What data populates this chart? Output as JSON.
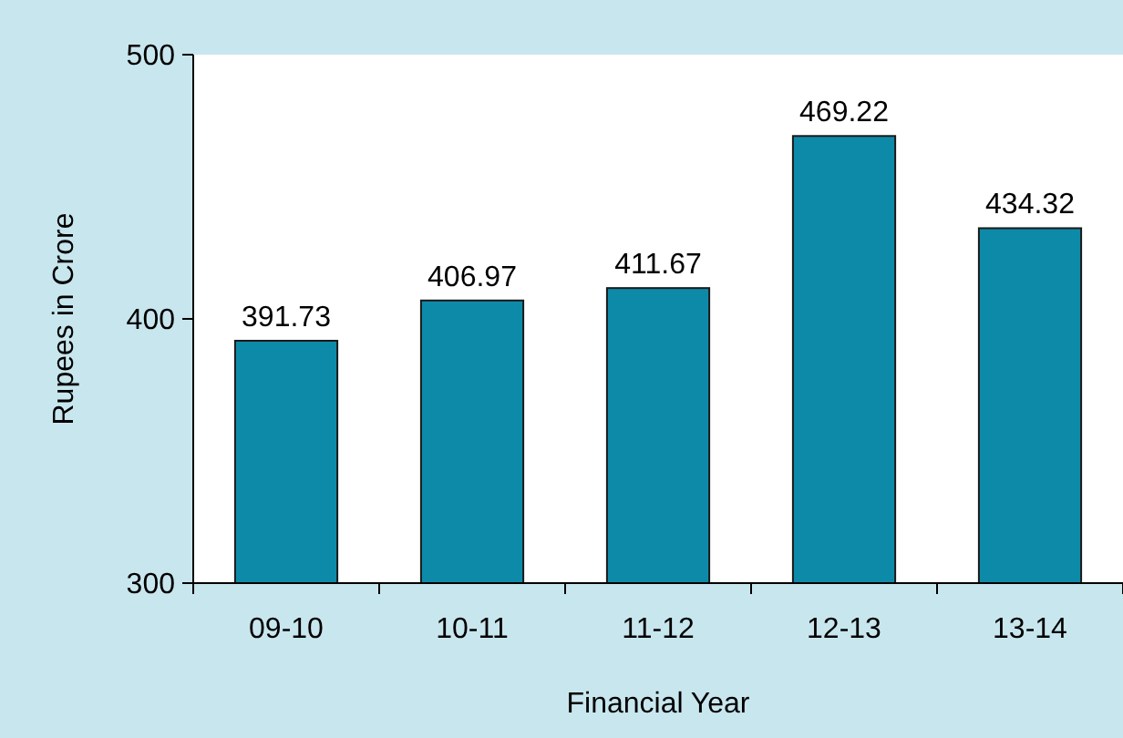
{
  "chart_data": {
    "type": "bar",
    "xlabel": "Financial Year",
    "ylabel": "Rupees in Crore",
    "categories": [
      "09-10",
      "10-11",
      "11-12",
      "12-13",
      "13-14"
    ],
    "values": [
      391.73,
      406.97,
      411.67,
      469.22,
      434.32
    ],
    "color": "#0e8aa9",
    "ylim": [
      300,
      500
    ],
    "yticks": [
      300,
      400,
      500
    ],
    "data_labels": true,
    "grid": false
  }
}
